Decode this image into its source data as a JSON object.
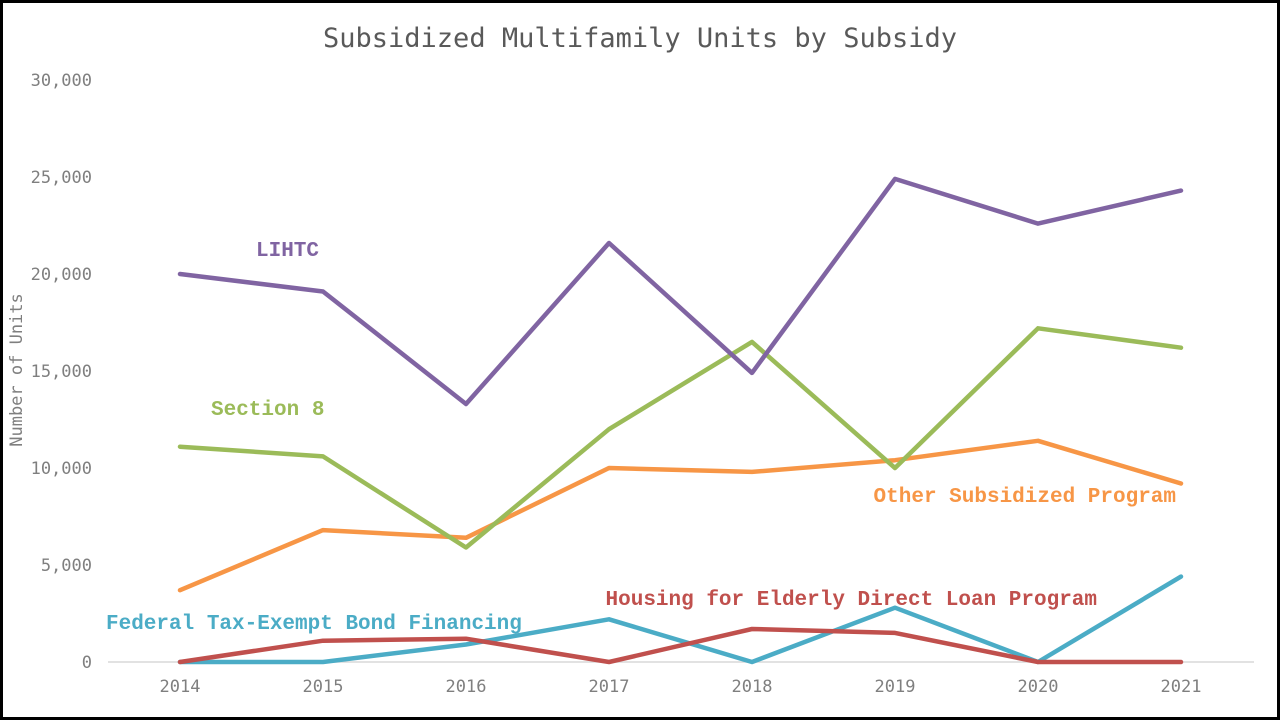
{
  "chart_data": {
    "type": "line",
    "title": "Subsidized Multifamily Units by Subsidy",
    "xlabel": "",
    "ylabel": "Number of Units",
    "x": [
      "2014",
      "2015",
      "2016",
      "2017",
      "2018",
      "2019",
      "2020",
      "2021"
    ],
    "ylim": [
      0,
      30000
    ],
    "yticks": [
      "0",
      "5,000",
      "10,000",
      "15,000",
      "20,000",
      "25,000",
      "30,000"
    ],
    "grid": false,
    "legend": "inline labels",
    "series": [
      {
        "name": "LIHTC",
        "color": "#8064a2",
        "values": [
          20000,
          19100,
          13300,
          21600,
          14900,
          24900,
          22600,
          24300
        ]
      },
      {
        "name": "Section 8",
        "color": "#9bbb59",
        "values": [
          11100,
          10600,
          5900,
          12000,
          16500,
          10000,
          17200,
          16200
        ]
      },
      {
        "name": "Other Subsidized Program",
        "color": "#f79646",
        "values": [
          3700,
          6800,
          6400,
          10000,
          9800,
          10400,
          11400,
          9200
        ]
      },
      {
        "name": "Housing for Elderly Direct Loan Program",
        "color": "#c0504d",
        "values": [
          0,
          1100,
          1200,
          0,
          1700,
          1500,
          0,
          0
        ]
      },
      {
        "name": "Federal Tax-Exempt Bond Financing",
        "color": "#4bacc6",
        "values": [
          0,
          0,
          900,
          2200,
          0,
          2800,
          0,
          4400
        ]
      }
    ]
  }
}
